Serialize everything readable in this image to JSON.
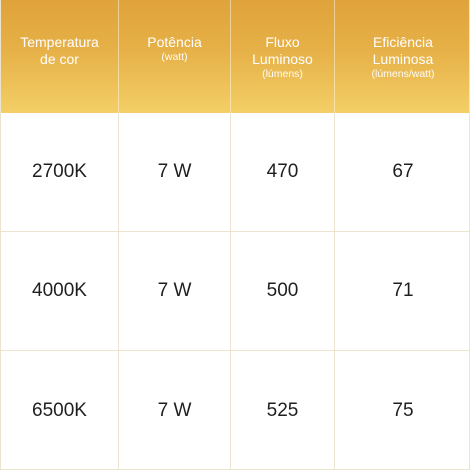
{
  "table": {
    "headers": [
      {
        "title": "Temperatura\nde cor",
        "unit": ""
      },
      {
        "title": "Potência",
        "unit": "(watt)"
      },
      {
        "title": "Fluxo\nLuminoso",
        "unit": "(lúmens)"
      },
      {
        "title": "Eficiência\nLuminosa",
        "unit": "(lúmens/watt)"
      }
    ],
    "rows": [
      [
        "2700K",
        "7 W",
        "470",
        "67"
      ],
      [
        "4000K",
        "7 W",
        "500",
        "71"
      ],
      [
        "6500K",
        "7 W",
        "525",
        "75"
      ]
    ]
  },
  "colors": {
    "header_gradient_top": "#dfa33a",
    "header_gradient_bottom": "#f3cf66",
    "grid_line": "#ece4cf"
  }
}
